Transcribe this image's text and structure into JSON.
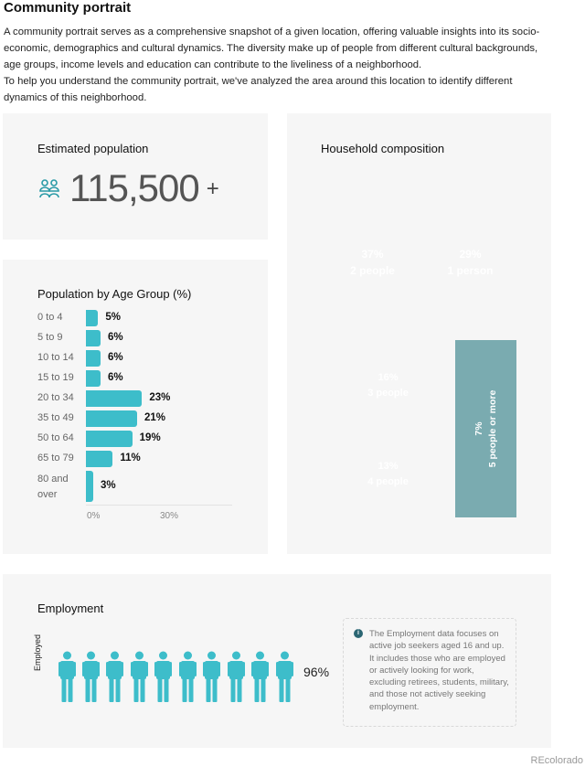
{
  "header": {
    "title": "Community portrait",
    "intro": [
      "A community portrait serves as a comprehensive snapshot of a given location, offering valuable insights into its socio-economic, demographics and cultural dynamics. The diversity make up of people from different cultural backgrounds, age groups, income levels and education  can contribute to the liveliness of a neighborhood.",
      "To help you understand the community portrait, we've analyzed the area around this location to identify different dynamics of this neighborhood."
    ]
  },
  "population": {
    "title": "Estimated population",
    "icon": "people-group-icon",
    "value": "115,500",
    "suffix": "+"
  },
  "age_chart": {
    "title": "Population by Age Group (%)",
    "groups": [
      {
        "label": "0 to 4",
        "value": 5,
        "display": "5%"
      },
      {
        "label": "5 to 9",
        "value": 6,
        "display": "6%"
      },
      {
        "label": "10 to 14",
        "value": 6,
        "display": "6%"
      },
      {
        "label": "15 to 19",
        "value": 6,
        "display": "6%"
      },
      {
        "label": "20 to 34",
        "value": 23,
        "display": "23%"
      },
      {
        "label": "35 to 49",
        "value": 21,
        "display": "21%"
      },
      {
        "label": "50 to 64",
        "value": 19,
        "display": "19%"
      },
      {
        "label": "65 to 79",
        "value": 11,
        "display": "11%"
      },
      {
        "label": "80 and over",
        "value": 3,
        "display": "3%"
      }
    ],
    "ticks": [
      "0%",
      "30%"
    ],
    "bar_color": "#3dbdca"
  },
  "household": {
    "title": "Household composition",
    "segments": [
      {
        "pct": "37%",
        "label": "2 people",
        "value": 37,
        "color": "#137a85"
      },
      {
        "pct": "29%",
        "label": "1 person",
        "value": 29,
        "color": "#0d4d55"
      },
      {
        "pct": "16%",
        "label": "3 people",
        "value": 16,
        "color": "#2db4c6"
      },
      {
        "pct": "13%",
        "label": "4 people",
        "value": 13,
        "color": "#07dcee"
      },
      {
        "pct": "7%",
        "label": "5 people or more",
        "value": 7,
        "color": "#7aabb0"
      }
    ]
  },
  "employment": {
    "title": "Employment",
    "axis_label": "Employed",
    "value": "96%",
    "employed_color": "#3dbdca",
    "unemployed_color": "#666666",
    "icon": "person-icon",
    "info_icon": "info-icon",
    "info_text": "The Employment data focuses on active job seekers aged 16 and up. It includes those who are employed or actively looking for work, excluding retirees, students, military, and those not actively seeking employment."
  },
  "watermark": "REcolorado"
}
